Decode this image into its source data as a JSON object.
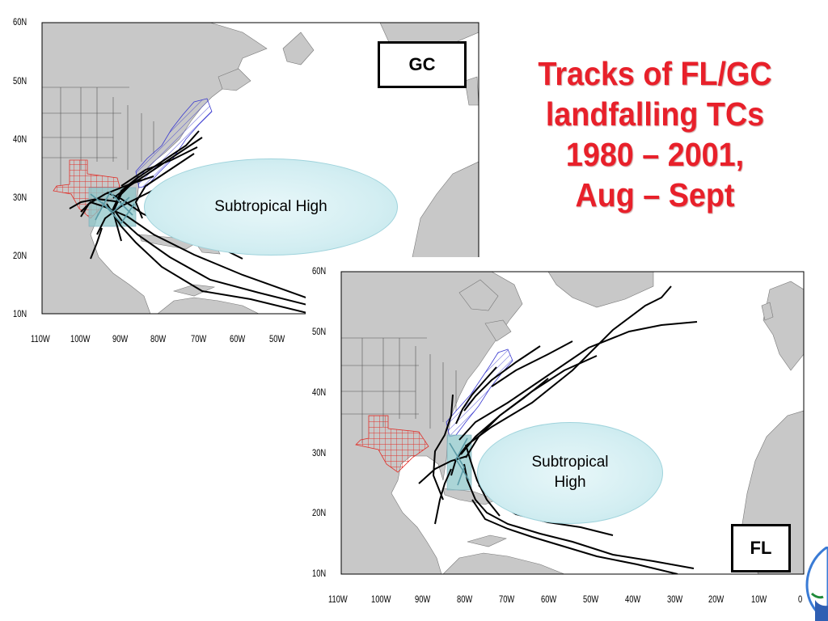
{
  "title": {
    "lines": [
      "Tracks of FL/GC",
      "landfalling TCs",
      "1980 – 2001,",
      "Aug – Sept"
    ],
    "color": "#e8202a"
  },
  "maps": [
    {
      "id": "gc",
      "region_label": "GC",
      "high_label": "Subtropical High",
      "lat_labels": [
        "60N",
        "50N",
        "40N",
        "30N",
        "20N",
        "10N"
      ],
      "lon_labels": [
        "110W",
        "100W",
        "90W",
        "80W",
        "70W",
        "60W",
        "50W"
      ]
    },
    {
      "id": "fl",
      "region_label": "FL",
      "high_label": "Subtropical\nHigh",
      "lat_labels": [
        "60N",
        "50N",
        "40N",
        "30N",
        "20N",
        "10N"
      ],
      "lon_labels": [
        "110W",
        "100W",
        "90W",
        "80W",
        "70W",
        "60W",
        "50W",
        "40W",
        "30W",
        "20W",
        "10W",
        "0"
      ]
    }
  ],
  "colors": {
    "land": "#c8c8c8",
    "ocean": "#ffffff",
    "texas_hatch": "#e0302a",
    "east_coast_hatch": "#3a3ad0",
    "landfall_box": "#8fc7c9",
    "track": "#000000",
    "high_fill": "#d3eef2"
  },
  "icons": {
    "logo": "agency-logo-icon"
  }
}
